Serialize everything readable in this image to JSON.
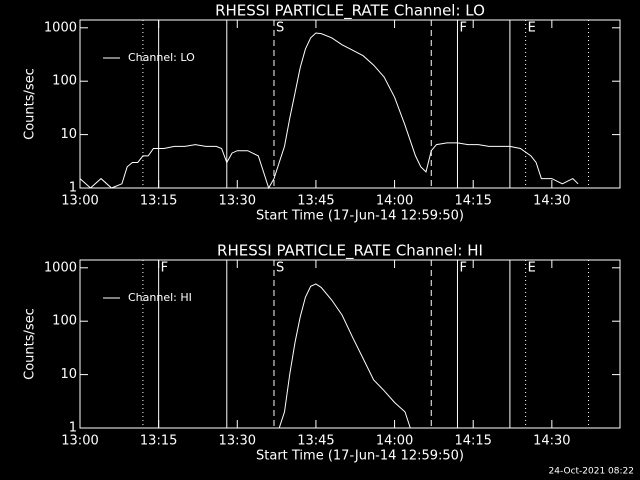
{
  "footer": "24-Oct-2021 08:22",
  "chart_data": [
    {
      "type": "line",
      "title": "RHESSI PARTICLE_RATE Channel: LO",
      "ylabel": "Counts/sec",
      "xlabel": "Start Time (17-Jun-14 12:59:50)",
      "log_y": true,
      "background": "#000000",
      "foreground": "#ffffff",
      "xlim": [
        "13:00",
        "14:43"
      ],
      "xticks": [
        "13:00",
        "13:15",
        "13:30",
        "13:45",
        "14:00",
        "14:15",
        "14:30"
      ],
      "ylim": [
        1,
        1400
      ],
      "yticks": [
        1,
        10,
        100,
        1000
      ],
      "x": [
        "13:00",
        "13:02",
        "13:04",
        "13:06",
        "13:08",
        "13:09",
        "13:10",
        "13:11",
        "13:12",
        "13:13",
        "13:14",
        "13:16",
        "13:18",
        "13:20",
        "13:22",
        "13:24",
        "13:26",
        "13:27",
        "13:28",
        "13:29",
        "13:30",
        "13:32",
        "13:34",
        "13:35",
        "13:36",
        "13:37",
        "13:38",
        "13:39",
        "13:40",
        "13:41",
        "13:42",
        "13:43",
        "13:44",
        "13:45",
        "13:46",
        "13:48",
        "13:50",
        "13:52",
        "13:54",
        "13:56",
        "13:58",
        "14:00",
        "14:02",
        "14:04",
        "14:05",
        "14:06",
        "14:07",
        "14:08",
        "14:10",
        "14:12",
        "14:14",
        "14:16",
        "14:18",
        "14:20",
        "14:22",
        "14:24",
        "14:26",
        "14:27",
        "14:28",
        "14:30",
        "14:32",
        "14:34",
        "14:35"
      ],
      "series": [
        {
          "name": "Channel: LO",
          "color": "#ffffff",
          "values": [
            1.5,
            1,
            1.5,
            1,
            1.2,
            2.5,
            3,
            3,
            4,
            4,
            5.5,
            5.5,
            6,
            6,
            6.5,
            6,
            6,
            5.5,
            3,
            4.5,
            5,
            5,
            4,
            2,
            1,
            1.5,
            3,
            6,
            20,
            60,
            180,
            400,
            650,
            800,
            780,
            650,
            480,
            380,
            300,
            200,
            120,
            50,
            15,
            4,
            2.5,
            2,
            5,
            6.5,
            7,
            7,
            6.5,
            6.5,
            6,
            6,
            6,
            5.5,
            4,
            3,
            1.5,
            1.5,
            1.2,
            1.5,
            1.2
          ]
        }
      ],
      "events": [
        {
          "time": "13:12",
          "style": "dotted"
        },
        {
          "time": "13:15",
          "style": "solid"
        },
        {
          "time": "13:28",
          "style": "solid"
        },
        {
          "time": "13:37",
          "style": "dashed",
          "label": "S"
        },
        {
          "time": "14:07",
          "style": "dashed"
        },
        {
          "time": "14:12",
          "style": "solid",
          "label": "F"
        },
        {
          "time": "14:22",
          "style": "solid"
        },
        {
          "time": "14:25",
          "style": "dotted",
          "label": "E"
        },
        {
          "time": "14:37",
          "style": "dotted"
        }
      ]
    },
    {
      "type": "line",
      "title": "RHESSI PARTICLE_RATE Channel: HI",
      "ylabel": "Counts/sec",
      "xlabel": "Start Time (17-Jun-14 12:59:50)",
      "log_y": true,
      "background": "#000000",
      "foreground": "#ffffff",
      "xlim": [
        "13:00",
        "14:43"
      ],
      "xticks": [
        "13:00",
        "13:15",
        "13:30",
        "13:45",
        "14:00",
        "14:15",
        "14:30"
      ],
      "ylim": [
        1,
        1400
      ],
      "yticks": [
        1,
        10,
        100,
        1000
      ],
      "x": [
        "13:38",
        "13:39",
        "13:40",
        "13:41",
        "13:42",
        "13:43",
        "13:44",
        "13:45",
        "13:46",
        "13:48",
        "13:50",
        "13:52",
        "13:54",
        "13:56",
        "13:58",
        "14:00",
        "14:02",
        "14:03"
      ],
      "series": [
        {
          "name": "Channel: HI",
          "color": "#ffffff",
          "values": [
            1,
            2,
            10,
            40,
            120,
            280,
            450,
            500,
            430,
            250,
            130,
            50,
            20,
            8,
            5,
            3,
            2,
            1
          ]
        }
      ],
      "events": [
        {
          "time": "13:12",
          "style": "dotted"
        },
        {
          "time": "13:15",
          "style": "solid",
          "label": "F"
        },
        {
          "time": "13:28",
          "style": "solid"
        },
        {
          "time": "13:37",
          "style": "dashed",
          "label": "S"
        },
        {
          "time": "14:07",
          "style": "dashed"
        },
        {
          "time": "14:12",
          "style": "solid",
          "label": "F"
        },
        {
          "time": "14:22",
          "style": "solid"
        },
        {
          "time": "14:25",
          "style": "dotted",
          "label": "E"
        },
        {
          "time": "14:37",
          "style": "dotted"
        }
      ]
    }
  ]
}
